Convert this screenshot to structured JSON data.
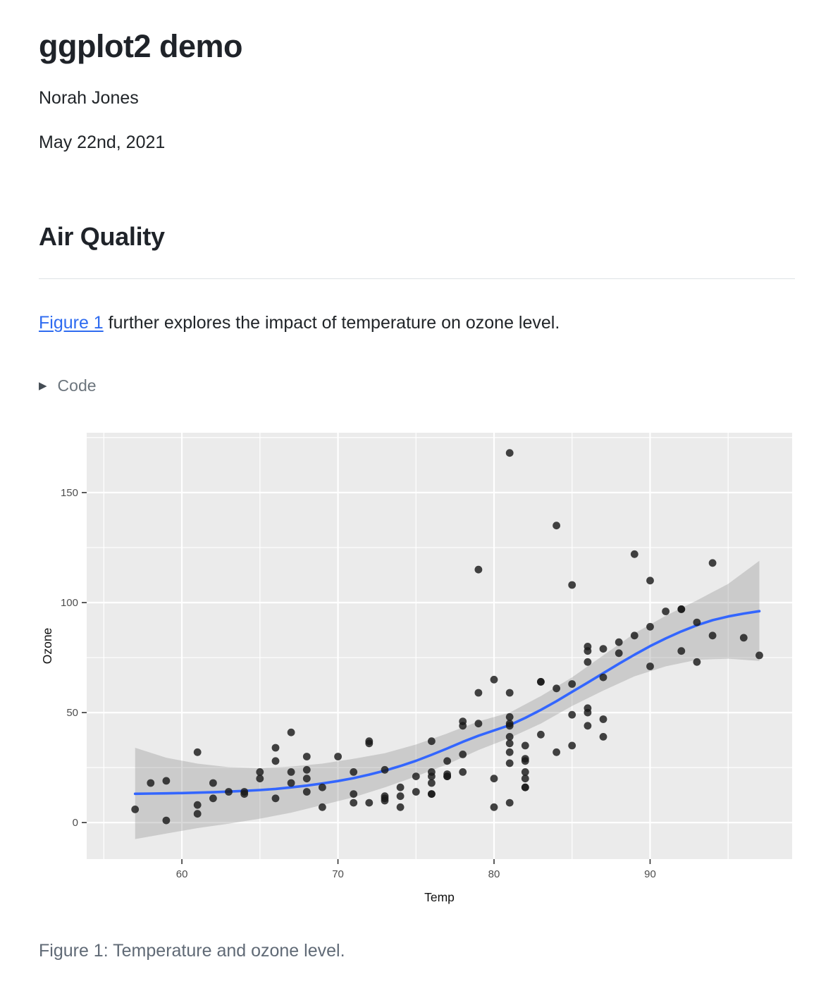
{
  "page": {
    "title": "ggplot2 demo",
    "author": "Norah Jones",
    "date": "May 22nd, 2021",
    "section_heading": "Air Quality",
    "paragraph": {
      "link_text": "Figure 1",
      "rest_text": " further explores the impact of temperature on ozone level."
    },
    "code_toggle_label": "Code",
    "figure_caption": "Figure 1: Temperature and ozone level."
  },
  "icons": {
    "disclosure_triangle": "▶"
  },
  "colors": {
    "link": "#2e6bf0",
    "panel_bg": "#EBEBEB",
    "gridline": "#FFFFFF",
    "ribbon": "#8A8A8A",
    "smooth_line": "#3366FF",
    "point": "#1A1A1A",
    "tick_text": "#4D4D4D",
    "tick_mark": "#333333",
    "axis_title": "#111111"
  },
  "chart_data": {
    "type": "scatter",
    "title": "",
    "xlabel": "Temp",
    "ylabel": "Ozone",
    "xlim": [
      53.9,
      99.1
    ],
    "ylim": [
      -16.6,
      177.2
    ],
    "x_ticks": [
      60,
      70,
      80,
      90
    ],
    "y_ticks": [
      0,
      50,
      100,
      150
    ],
    "x_minor_ticks": [
      55,
      65,
      75,
      85,
      95
    ],
    "y_minor_ticks": [
      25,
      75,
      125,
      175
    ],
    "grid": "major-and-minor",
    "legend_position": "none",
    "points": [
      [
        67,
        41
      ],
      [
        72,
        36
      ],
      [
        74,
        12
      ],
      [
        62,
        18
      ],
      [
        66,
        28
      ],
      [
        65,
        23
      ],
      [
        59,
        19
      ],
      [
        61,
        8
      ],
      [
        74,
        7
      ],
      [
        69,
        16
      ],
      [
        66,
        11
      ],
      [
        68,
        14
      ],
      [
        58,
        18
      ],
      [
        64,
        14
      ],
      [
        66,
        34
      ],
      [
        57,
        6
      ],
      [
        68,
        30
      ],
      [
        62,
        11
      ],
      [
        59,
        1
      ],
      [
        73,
        11
      ],
      [
        61,
        4
      ],
      [
        61,
        32
      ],
      [
        67,
        23
      ],
      [
        81,
        45
      ],
      [
        79,
        115
      ],
      [
        76,
        37
      ],
      [
        82,
        29
      ],
      [
        90,
        71
      ],
      [
        87,
        39
      ],
      [
        82,
        23
      ],
      [
        77,
        21
      ],
      [
        72,
        37
      ],
      [
        65,
        20
      ],
      [
        73,
        12
      ],
      [
        76,
        13
      ],
      [
        84,
        135
      ],
      [
        85,
        49
      ],
      [
        81,
        32
      ],
      [
        83,
        64
      ],
      [
        83,
        40
      ],
      [
        88,
        77
      ],
      [
        92,
        97
      ],
      [
        92,
        97
      ],
      [
        89,
        85
      ],
      [
        73,
        10
      ],
      [
        81,
        27
      ],
      [
        80,
        7
      ],
      [
        81,
        48
      ],
      [
        82,
        35
      ],
      [
        84,
        61
      ],
      [
        87,
        79
      ],
      [
        85,
        63
      ],
      [
        74,
        16
      ],
      [
        86,
        80
      ],
      [
        85,
        108
      ],
      [
        82,
        20
      ],
      [
        86,
        52
      ],
      [
        88,
        82
      ],
      [
        86,
        50
      ],
      [
        83,
        64
      ],
      [
        81,
        59
      ],
      [
        81,
        39
      ],
      [
        81,
        9
      ],
      [
        82,
        16
      ],
      [
        86,
        78
      ],
      [
        85,
        35
      ],
      [
        87,
        66
      ],
      [
        89,
        122
      ],
      [
        90,
        89
      ],
      [
        90,
        110
      ],
      [
        86,
        44
      ],
      [
        82,
        28
      ],
      [
        80,
        65
      ],
      [
        77,
        22
      ],
      [
        79,
        59
      ],
      [
        76,
        23
      ],
      [
        78,
        31
      ],
      [
        78,
        44
      ],
      [
        77,
        21
      ],
      [
        72,
        9
      ],
      [
        79,
        45
      ],
      [
        81,
        168
      ],
      [
        86,
        73
      ],
      [
        97,
        76
      ],
      [
        94,
        118
      ],
      [
        96,
        84
      ],
      [
        94,
        85
      ],
      [
        91,
        96
      ],
      [
        92,
        78
      ],
      [
        93,
        73
      ],
      [
        93,
        91
      ],
      [
        87,
        47
      ],
      [
        84,
        32
      ],
      [
        80,
        20
      ],
      [
        78,
        23
      ],
      [
        75,
        21
      ],
      [
        73,
        24
      ],
      [
        81,
        44
      ],
      [
        76,
        21
      ],
      [
        77,
        28
      ],
      [
        71,
        9
      ],
      [
        71,
        13
      ],
      [
        78,
        46
      ],
      [
        67,
        18
      ],
      [
        76,
        13
      ],
      [
        68,
        24
      ],
      [
        82,
        16
      ],
      [
        64,
        13
      ],
      [
        71,
        23
      ],
      [
        81,
        36
      ],
      [
        69,
        7
      ],
      [
        63,
        14
      ],
      [
        70,
        30
      ],
      [
        75,
        14
      ],
      [
        76,
        18
      ],
      [
        68,
        20
      ]
    ],
    "smooth_line": [
      [
        57,
        13.1
      ],
      [
        58,
        13.2
      ],
      [
        59,
        13.3
      ],
      [
        60,
        13.4
      ],
      [
        61,
        13.6
      ],
      [
        62,
        13.8
      ],
      [
        63,
        14.1
      ],
      [
        64,
        14.4
      ],
      [
        65,
        14.8
      ],
      [
        66,
        15.3
      ],
      [
        67,
        16.0
      ],
      [
        68,
        16.8
      ],
      [
        69,
        17.8
      ],
      [
        70,
        18.9
      ],
      [
        71,
        20.2
      ],
      [
        72,
        21.8
      ],
      [
        73,
        23.6
      ],
      [
        74,
        25.7
      ],
      [
        75,
        28.1
      ],
      [
        76,
        30.8
      ],
      [
        77,
        33.7
      ],
      [
        78,
        36.7
      ],
      [
        79,
        39.5
      ],
      [
        80,
        41.9
      ],
      [
        81,
        44.3
      ],
      [
        82,
        47.6
      ],
      [
        83,
        51.2
      ],
      [
        84,
        55.2
      ],
      [
        85,
        59.4
      ],
      [
        86,
        63.6
      ],
      [
        87,
        67.9
      ],
      [
        88,
        72.2
      ],
      [
        89,
        76.3
      ],
      [
        90,
        80.2
      ],
      [
        91,
        83.7
      ],
      [
        92,
        86.9
      ],
      [
        93,
        89.7
      ],
      [
        94,
        92.0
      ],
      [
        95,
        93.7
      ],
      [
        96,
        95.0
      ],
      [
        97,
        96.1
      ]
    ],
    "ribbon": [
      [
        57,
        -7.5,
        34.0
      ],
      [
        59,
        -5.0,
        29.5
      ],
      [
        61,
        -2.5,
        26.8
      ],
      [
        63,
        -0.5,
        25.2
      ],
      [
        65,
        1.8,
        24.8
      ],
      [
        67,
        4.5,
        25.5
      ],
      [
        69,
        8.0,
        26.8
      ],
      [
        71,
        11.5,
        29.0
      ],
      [
        73,
        16.0,
        31.5
      ],
      [
        75,
        21.0,
        35.5
      ],
      [
        77,
        26.5,
        40.5
      ],
      [
        79,
        33.0,
        46.0
      ],
      [
        81,
        38.5,
        50.0
      ],
      [
        83,
        45.0,
        57.5
      ],
      [
        85,
        53.0,
        66.0
      ],
      [
        87,
        60.0,
        76.0
      ],
      [
        89,
        66.5,
        86.0
      ],
      [
        91,
        71.0,
        94.0
      ],
      [
        93,
        74.0,
        101.0
      ],
      [
        95,
        74.5,
        108.5
      ],
      [
        97,
        73.5,
        119.0
      ]
    ]
  }
}
